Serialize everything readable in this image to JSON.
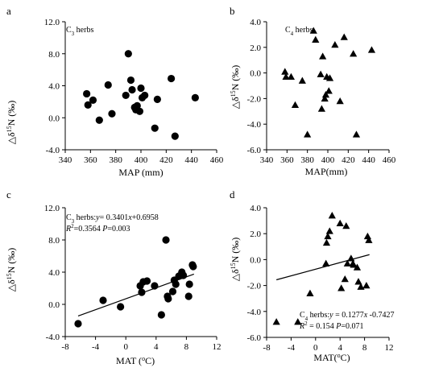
{
  "chart_data": [
    {
      "panel": "a",
      "type": "scatter",
      "series": [
        {
          "name": "C3 herbs",
          "marker": "circle",
          "points": [
            [
              357,
              3.0
            ],
            [
              358,
              1.6
            ],
            [
              362,
              2.2
            ],
            [
              367,
              -0.3
            ],
            [
              374,
              4.1
            ],
            [
              377,
              0.5
            ],
            [
              388,
              2.8
            ],
            [
              390,
              8.0
            ],
            [
              392,
              4.7
            ],
            [
              393,
              3.5
            ],
            [
              395,
              1.3
            ],
            [
              396,
              1.0
            ],
            [
              397,
              1.5
            ],
            [
              399,
              0.8
            ],
            [
              400,
              3.7
            ],
            [
              401,
              2.5
            ],
            [
              403,
              2.8
            ],
            [
              411,
              -1.3
            ],
            [
              413,
              2.3
            ],
            [
              424,
              4.9
            ],
            [
              427,
              -2.3
            ],
            [
              443,
              2.5
            ]
          ]
        }
      ],
      "x_ticks": [
        "340",
        "360",
        "380",
        "400",
        "420",
        "440",
        "460"
      ],
      "y_ticks": [
        "-4.0",
        "0.0",
        "4.0",
        "8.0",
        "12.0"
      ],
      "xlim": [
        340,
        460
      ],
      "ylim": [
        -4,
        12
      ],
      "xlabel": "MAP (mm)",
      "ylabel": "△δ15N (‰)",
      "annotations": [
        "C3 herbs"
      ]
    },
    {
      "panel": "b",
      "type": "scatter",
      "series": [
        {
          "name": "C4 herbs",
          "marker": "triangle",
          "points": [
            [
              358,
              0.1
            ],
            [
              359,
              -0.3
            ],
            [
              364,
              -0.3
            ],
            [
              368,
              -2.5
            ],
            [
              375,
              -0.6
            ],
            [
              380,
              -4.8
            ],
            [
              386,
              3.3
            ],
            [
              388,
              2.6
            ],
            [
              393,
              -0.1
            ],
            [
              394,
              -2.8
            ],
            [
              395,
              1.3
            ],
            [
              397,
              -2.0
            ],
            [
              398,
              -1.7
            ],
            [
              399,
              -0.3
            ],
            [
              401,
              -1.4
            ],
            [
              402,
              -0.4
            ],
            [
              407,
              2.2
            ],
            [
              412,
              -2.2
            ],
            [
              416,
              2.8
            ],
            [
              425,
              1.5
            ],
            [
              428,
              -4.8
            ],
            [
              443,
              1.8
            ]
          ]
        }
      ],
      "x_ticks": [
        "340",
        "360",
        "380",
        "400",
        "420",
        "440",
        "460"
      ],
      "y_ticks": [
        "-6.0",
        "-4.0",
        "-2.0",
        "0.0",
        "2.0",
        "4.0"
      ],
      "xlim": [
        340,
        460
      ],
      "ylim": [
        -6,
        4
      ],
      "xlabel": "MAP(mm)",
      "ylabel": "△δ15N (‰)",
      "annotations": [
        "C4 herbs"
      ]
    },
    {
      "panel": "c",
      "type": "scatter",
      "series": [
        {
          "name": "C3 herbs",
          "marker": "circle",
          "points": [
            [
              -6.3,
              -2.4
            ],
            [
              -3.0,
              0.5
            ],
            [
              -0.7,
              -0.3
            ],
            [
              1.9,
              2.3
            ],
            [
              2.1,
              1.5
            ],
            [
              2.3,
              2.8
            ],
            [
              2.8,
              2.9
            ],
            [
              3.8,
              2.3
            ],
            [
              4.7,
              -1.3
            ],
            [
              5.3,
              8.0
            ],
            [
              5.5,
              1.0
            ],
            [
              5.6,
              0.7
            ],
            [
              6.2,
              1.6
            ],
            [
              6.4,
              3.0
            ],
            [
              6.6,
              2.5
            ],
            [
              7.0,
              3.5
            ],
            [
              7.4,
              4.0
            ],
            [
              7.6,
              3.6
            ],
            [
              8.3,
              1.0
            ],
            [
              8.4,
              2.5
            ],
            [
              8.8,
              4.9
            ],
            [
              8.9,
              4.7
            ]
          ]
        }
      ],
      "regression": {
        "slope": 0.3401,
        "intercept": 0.6958,
        "x_range": [
          -6.3,
          9.0
        ]
      },
      "x_ticks": [
        "-8",
        "-4",
        "0",
        "4",
        "8",
        "12"
      ],
      "y_ticks": [
        "-4.0",
        "0.0",
        "4.0",
        "8.0",
        "12.0"
      ],
      "xlim": [
        -8,
        12
      ],
      "ylim": [
        -4,
        12
      ],
      "xlabel": "MAT (oC)",
      "ylabel": "△δ15N (‰)",
      "annotations": [
        "C3 herbs:y= 0.3401x+0.6958",
        "R2=0.3564  P=0.003"
      ]
    },
    {
      "panel": "d",
      "type": "scatter",
      "series": [
        {
          "name": "C4 herbs",
          "marker": "triangle",
          "points": [
            [
              -6.4,
              -4.8
            ],
            [
              -2.9,
              -4.8
            ],
            [
              -0.9,
              -2.6
            ],
            [
              1.7,
              -0.3
            ],
            [
              1.8,
              1.3
            ],
            [
              2.0,
              1.8
            ],
            [
              2.3,
              2.2
            ],
            [
              2.7,
              3.4
            ],
            [
              4.0,
              2.8
            ],
            [
              4.2,
              -2.2
            ],
            [
              4.8,
              -1.5
            ],
            [
              5.0,
              2.6
            ],
            [
              5.2,
              -0.3
            ],
            [
              5.8,
              0.1
            ],
            [
              6.1,
              -0.3
            ],
            [
              6.2,
              -0.4
            ],
            [
              6.8,
              -0.6
            ],
            [
              7.0,
              -1.7
            ],
            [
              7.4,
              -2.1
            ],
            [
              8.3,
              -2.0
            ],
            [
              8.5,
              1.8
            ],
            [
              8.7,
              1.5
            ]
          ]
        }
      ],
      "regression": {
        "slope": 0.1277,
        "intercept": -0.7427,
        "x_range": [
          -6.4,
          8.8
        ]
      },
      "x_ticks": [
        "-8",
        "-4",
        "0",
        "4",
        "8",
        "12"
      ],
      "y_ticks": [
        "-6.0",
        "-4.0",
        "-2.0",
        "0.0",
        "2.0",
        "4.0"
      ],
      "xlim": [
        -8,
        12
      ],
      "ylim": [
        -6,
        4
      ],
      "xlabel": "MAT(oC)",
      "ylabel": "△δ15N (‰)",
      "annotations": [
        "C4 herbs:y = 0.1277x -0.7427",
        "R2 = 0.154  P=0.071"
      ]
    }
  ]
}
